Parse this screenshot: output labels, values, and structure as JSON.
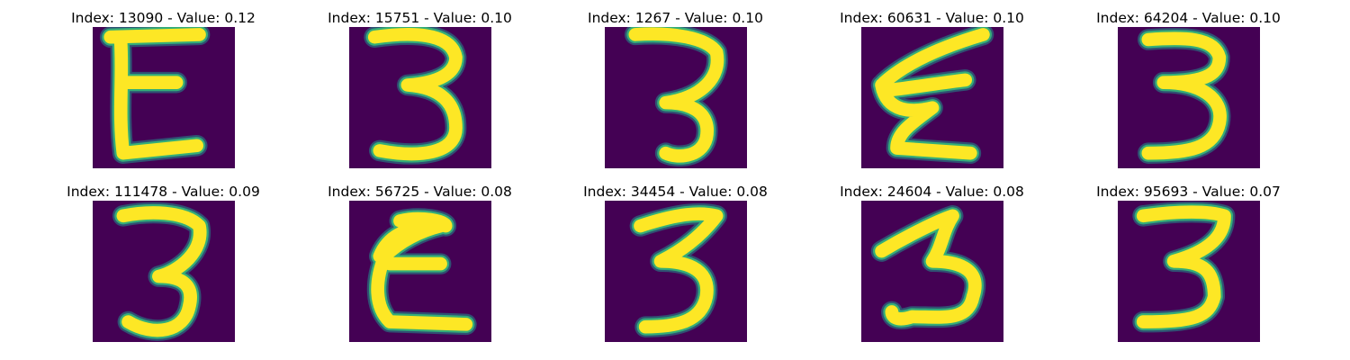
{
  "panels": [
    {
      "title": "Index: 13090 - Value: 0.12",
      "index": 13090,
      "value": 0.12,
      "glyph": "E"
    },
    {
      "title": "Index: 15751 - Value: 0.10",
      "index": 15751,
      "value": 0.1,
      "glyph": "3"
    },
    {
      "title": "Index: 1267 - Value: 0.10",
      "index": 1267,
      "value": 0.1,
      "glyph": "3"
    },
    {
      "title": "Index: 60631 - Value: 0.10",
      "index": 60631,
      "value": 0.1,
      "glyph": "E"
    },
    {
      "title": "Index: 64204 - Value: 0.10",
      "index": 64204,
      "value": 0.1,
      "glyph": "3"
    },
    {
      "title": "Index: 111478 - Value: 0.09",
      "index": 111478,
      "value": 0.09,
      "glyph": "3"
    },
    {
      "title": "Index: 56725 - Value: 0.08",
      "index": 56725,
      "value": 0.08,
      "glyph": "E"
    },
    {
      "title": "Index: 34454 - Value: 0.08",
      "index": 34454,
      "value": 0.08,
      "glyph": "3"
    },
    {
      "title": "Index: 24604 - Value: 0.08",
      "index": 24604,
      "value": 0.08,
      "glyph": "3"
    },
    {
      "title": "Index: 95693 - Value: 0.07",
      "index": 95693,
      "value": 0.07,
      "glyph": "3"
    }
  ],
  "colors": {
    "background": "#ffffff",
    "tile_background": "#440154",
    "stroke": "#fde725",
    "stroke_edge": "#35b779"
  }
}
